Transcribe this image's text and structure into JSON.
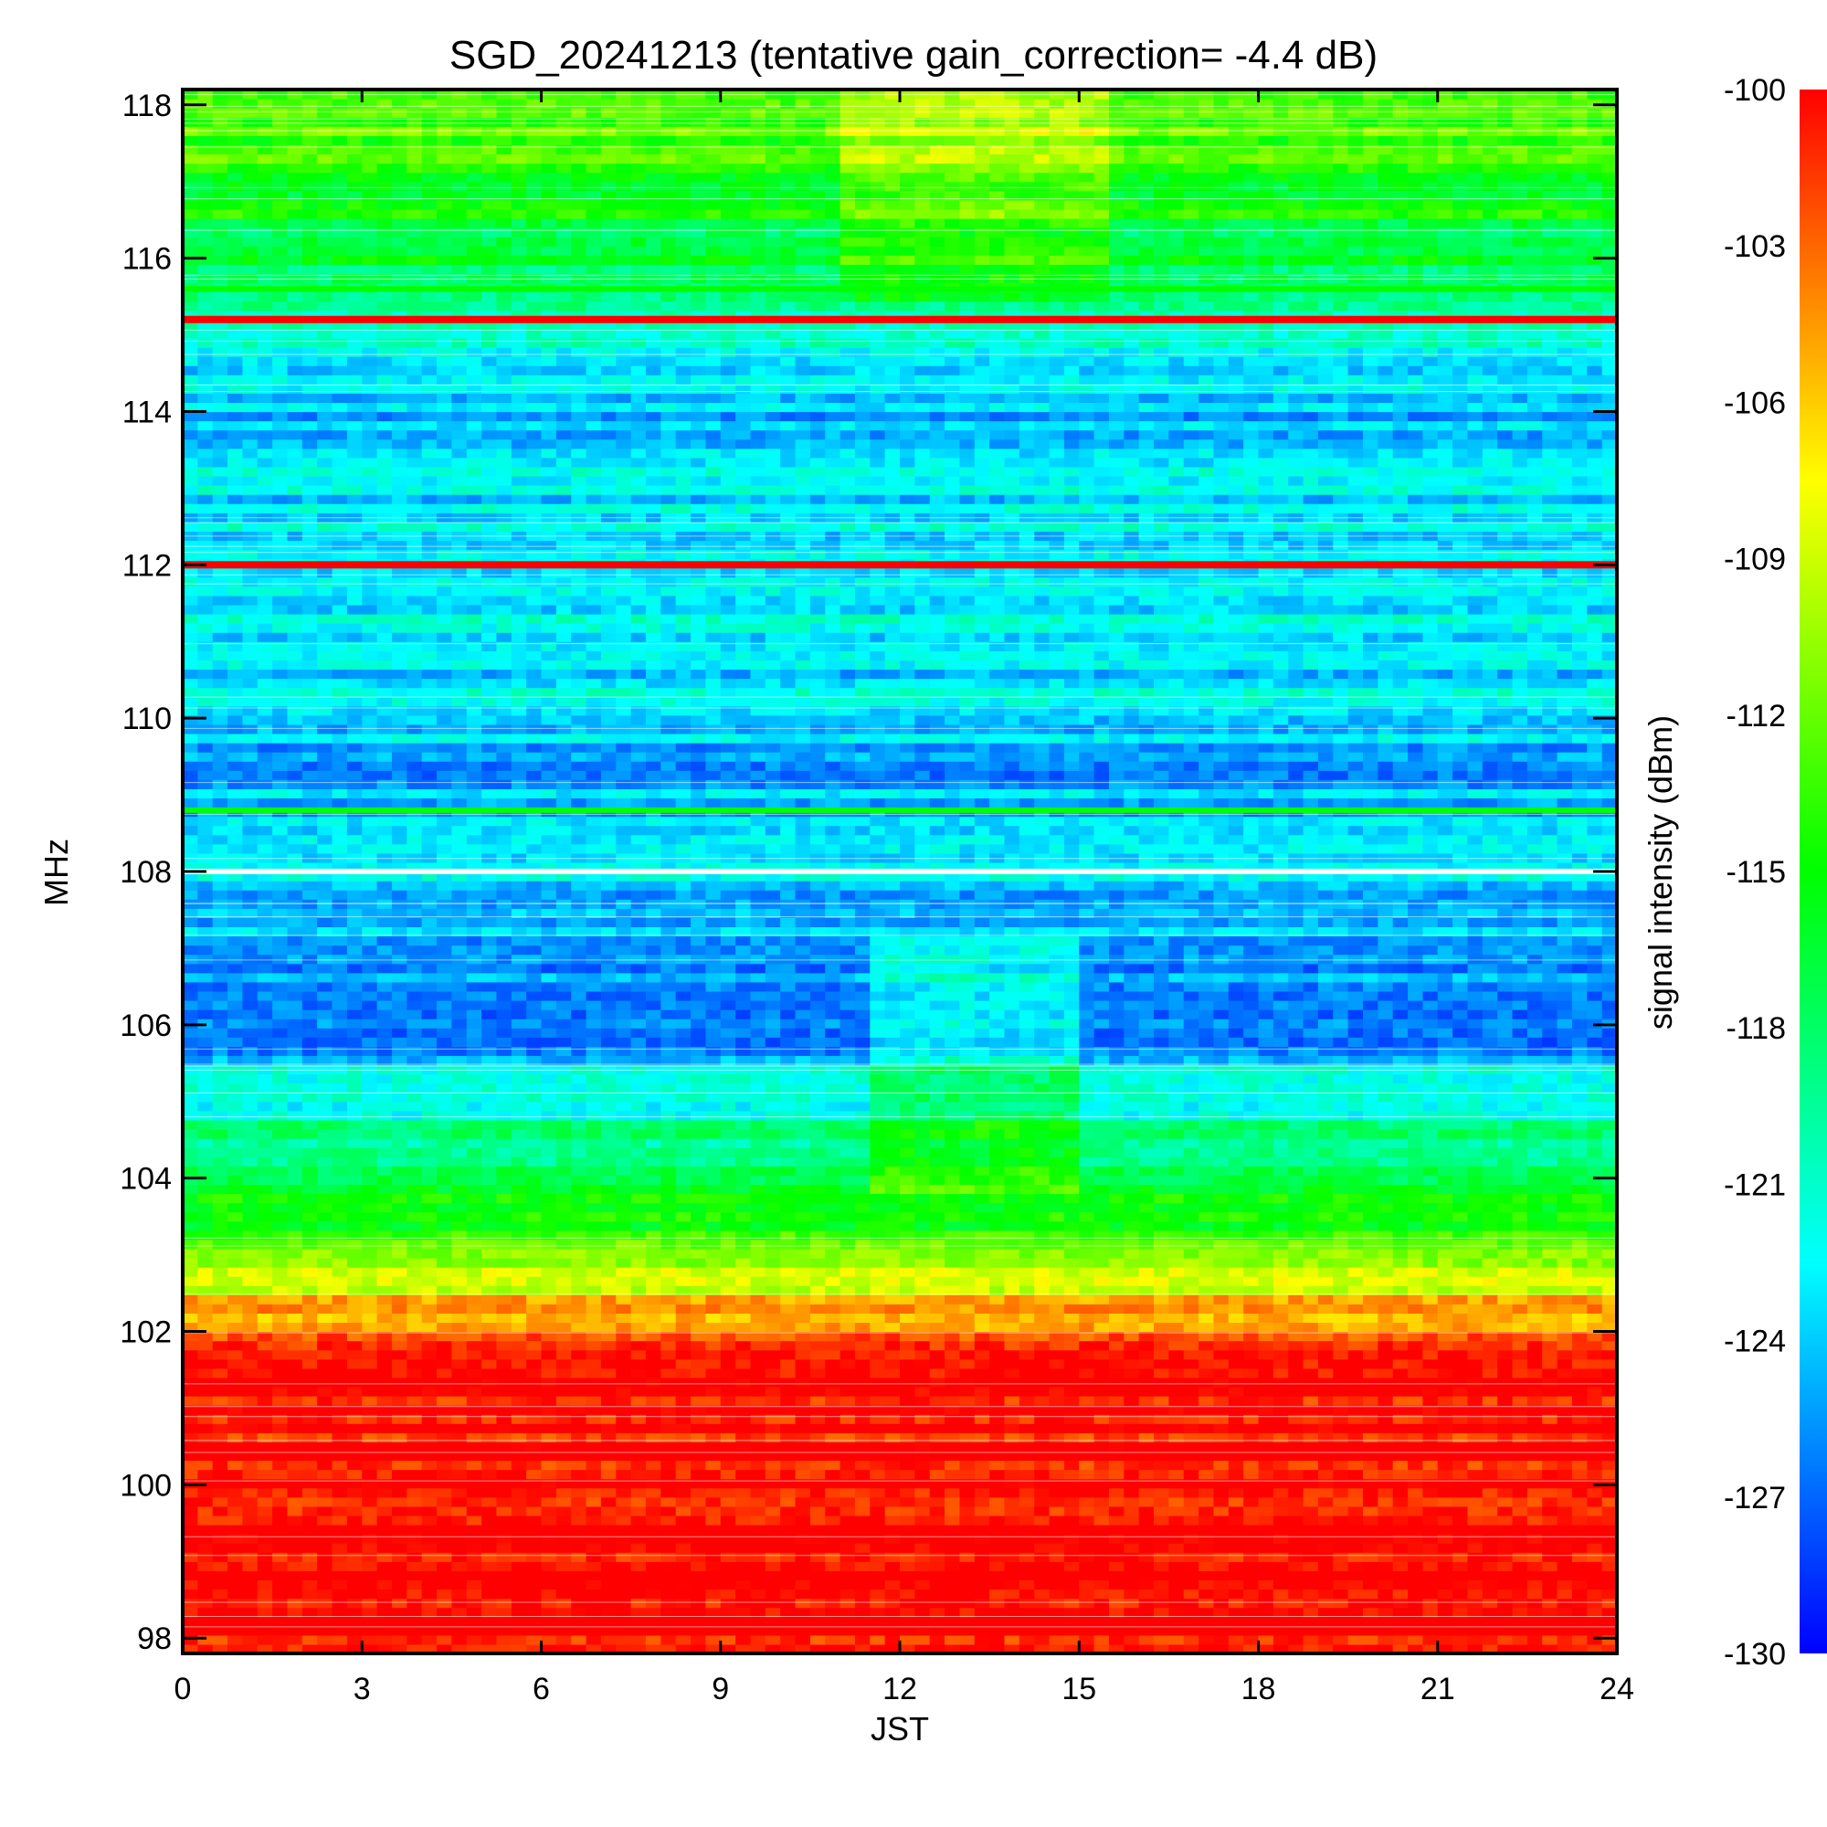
{
  "chart_data": {
    "type": "heatmap",
    "title": "SGD_20241213 (tentative gain_correction= -4.4 dB)",
    "xlabel": "JST",
    "ylabel": "MHz",
    "colorbar_label": "signal intensity (dBm)",
    "xlim": [
      0,
      24
    ],
    "ylim": [
      97.8,
      118.2
    ],
    "clim": [
      -130,
      -100
    ],
    "colormap": "rainbow (blue → cyan → green → yellow → red)",
    "x_ticks": [
      0,
      3,
      6,
      9,
      12,
      15,
      18,
      21,
      24
    ],
    "x_tick_labels": [
      "0",
      "3",
      "6",
      "9",
      "12",
      "15",
      "18",
      "21",
      "24"
    ],
    "y_ticks": [
      98,
      100,
      102,
      104,
      106,
      108,
      110,
      112,
      114,
      116,
      118
    ],
    "y_tick_labels": [
      "98",
      "100",
      "102",
      "104",
      "106",
      "108",
      "110",
      "112",
      "114",
      "116",
      "118"
    ],
    "colorbar_ticks": [
      -100,
      -103,
      -106,
      -109,
      -112,
      -115,
      -118,
      -121,
      -124,
      -127,
      -130
    ],
    "colorbar_tick_labels": [
      "-100",
      "-103",
      "-106",
      "-109",
      "-112",
      "-115",
      "-118",
      "-121",
      "-124",
      "-127",
      "-130"
    ],
    "frequency_profile": [
      {
        "mhz": 97.8,
        "dbm": -100
      },
      {
        "mhz": 101.0,
        "dbm": -100
      },
      {
        "mhz": 101.8,
        "dbm": -101.5
      },
      {
        "mhz": 102.2,
        "dbm": -104
      },
      {
        "mhz": 102.6,
        "dbm": -108
      },
      {
        "mhz": 103.0,
        "dbm": -112
      },
      {
        "mhz": 103.5,
        "dbm": -115
      },
      {
        "mhz": 104.0,
        "dbm": -116.5
      },
      {
        "mhz": 104.5,
        "dbm": -119
      },
      {
        "mhz": 105.0,
        "dbm": -121
      },
      {
        "mhz": 105.5,
        "dbm": -124
      },
      {
        "mhz": 106.0,
        "dbm": -126.5
      },
      {
        "mhz": 106.5,
        "dbm": -126
      },
      {
        "mhz": 107.0,
        "dbm": -125
      },
      {
        "mhz": 107.5,
        "dbm": -124
      },
      {
        "mhz": 107.95,
        "dbm": -123.5
      },
      {
        "mhz": 108.05,
        "dbm": -122
      },
      {
        "mhz": 108.5,
        "dbm": -123.5
      },
      {
        "mhz": 109.0,
        "dbm": -124.5
      },
      {
        "mhz": 109.5,
        "dbm": -125
      },
      {
        "mhz": 110.0,
        "dbm": -123.5
      },
      {
        "mhz": 111.0,
        "dbm": -123
      },
      {
        "mhz": 112.0,
        "dbm": -122.5
      },
      {
        "mhz": 113.0,
        "dbm": -123
      },
      {
        "mhz": 114.0,
        "dbm": -124.5
      },
      {
        "mhz": 115.0,
        "dbm": -122
      },
      {
        "mhz": 115.5,
        "dbm": -120
      },
      {
        "mhz": 116.0,
        "dbm": -117
      },
      {
        "mhz": 117.0,
        "dbm": -114
      },
      {
        "mhz": 118.2,
        "dbm": -112.5
      }
    ],
    "daytime_region": {
      "x_start": 11.4,
      "x_end": 14.9,
      "mhz_low": 103.8,
      "mhz_high": 107.2,
      "offset_db": 3.5
    },
    "upper_band_day_enhancement": {
      "x_start": 11.0,
      "x_end": 15.5,
      "mhz_low": 115.5,
      "mhz_high": 118.2,
      "offset_db": 3
    },
    "red_lines_mhz": [
      112.0,
      115.2
    ],
    "bright_lines_mhz": [
      108.8,
      115.6
    ],
    "white_line_mhz": 108.0
  }
}
